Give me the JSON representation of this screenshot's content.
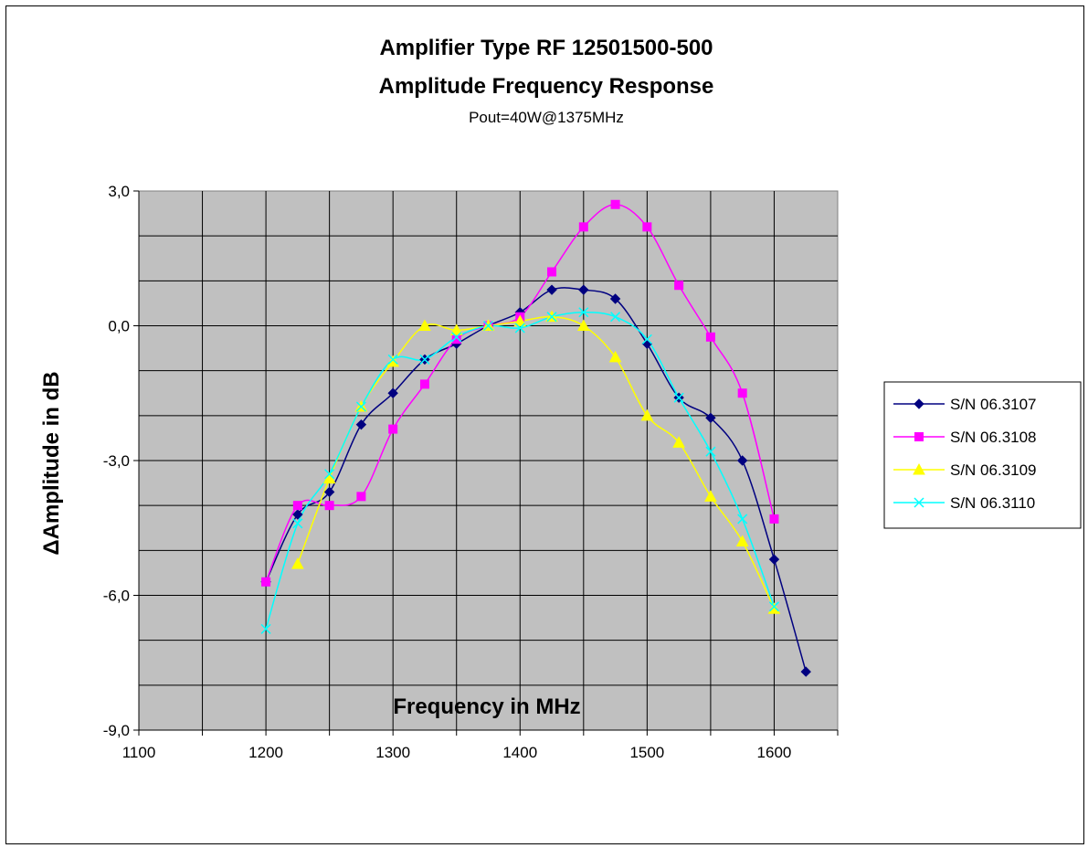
{
  "chart_data": {
    "type": "line",
    "title": "Amplifier Type RF 12501500-500",
    "subtitle": "Amplitude Frequency Response",
    "note": "Pout=40W@1375MHz",
    "xlabel": "Frequency in MHz",
    "ylabel": "ΔAmplitude in dB",
    "xlim": [
      1100,
      1650
    ],
    "ylim": [
      -9.0,
      3.0
    ],
    "xticks": [
      1100,
      1200,
      1300,
      1400,
      1500,
      1600
    ],
    "yticks": [
      3.0,
      0.0,
      -3.0,
      -6.0,
      -9.0
    ],
    "ytick_labels": [
      "3,0",
      "0,0",
      "-3,0",
      "-6,0",
      "-9,0"
    ],
    "grid": true,
    "plot_background": "#c0c0c0",
    "legend_position": "right",
    "series": [
      {
        "name": "S/N 06.3107",
        "color": "#000080",
        "marker": "diamond",
        "x": [
          1200,
          1225,
          1250,
          1275,
          1300,
          1325,
          1350,
          1375,
          1400,
          1425,
          1450,
          1475,
          1500,
          1525,
          1550,
          1575,
          1600,
          1625
        ],
        "y": [
          -5.7,
          -4.2,
          -3.7,
          -2.2,
          -1.5,
          -0.75,
          -0.4,
          0.0,
          0.3,
          0.8,
          0.8,
          0.6,
          -0.4,
          -1.6,
          -2.05,
          -3.0,
          -5.2,
          -7.7
        ]
      },
      {
        "name": "S/N 06.3108",
        "color": "#ff00ff",
        "marker": "square",
        "x": [
          1200,
          1225,
          1250,
          1275,
          1300,
          1325,
          1350,
          1375,
          1400,
          1425,
          1450,
          1475,
          1500,
          1525,
          1550,
          1575,
          1600
        ],
        "y": [
          -5.7,
          -4.0,
          -4.0,
          -3.8,
          -2.3,
          -1.3,
          -0.3,
          0.0,
          0.2,
          1.2,
          2.2,
          2.7,
          2.2,
          0.9,
          -0.25,
          -1.5,
          -4.3
        ]
      },
      {
        "name": "S/N 06.3109",
        "color": "#ffff00",
        "marker": "triangle",
        "x": [
          1225,
          1250,
          1275,
          1300,
          1325,
          1350,
          1375,
          1400,
          1425,
          1450,
          1475,
          1500,
          1525,
          1550,
          1575,
          1600
        ],
        "y": [
          -5.3,
          -3.4,
          -1.8,
          -0.8,
          0.0,
          -0.1,
          0.0,
          0.1,
          0.2,
          0.0,
          -0.7,
          -2.0,
          -2.6,
          -3.8,
          -4.8,
          -6.3
        ]
      },
      {
        "name": "S/N 06.3110",
        "color": "#00ffff",
        "marker": "x",
        "x": [
          1200,
          1225,
          1250,
          1275,
          1300,
          1325,
          1350,
          1375,
          1400,
          1425,
          1450,
          1475,
          1500,
          1525,
          1550,
          1575,
          1600
        ],
        "y": [
          -6.75,
          -4.4,
          -3.3,
          -1.8,
          -0.75,
          -0.75,
          -0.25,
          0.0,
          -0.05,
          0.2,
          0.3,
          0.2,
          -0.3,
          -1.6,
          -2.8,
          -4.3,
          -6.25
        ]
      }
    ]
  }
}
